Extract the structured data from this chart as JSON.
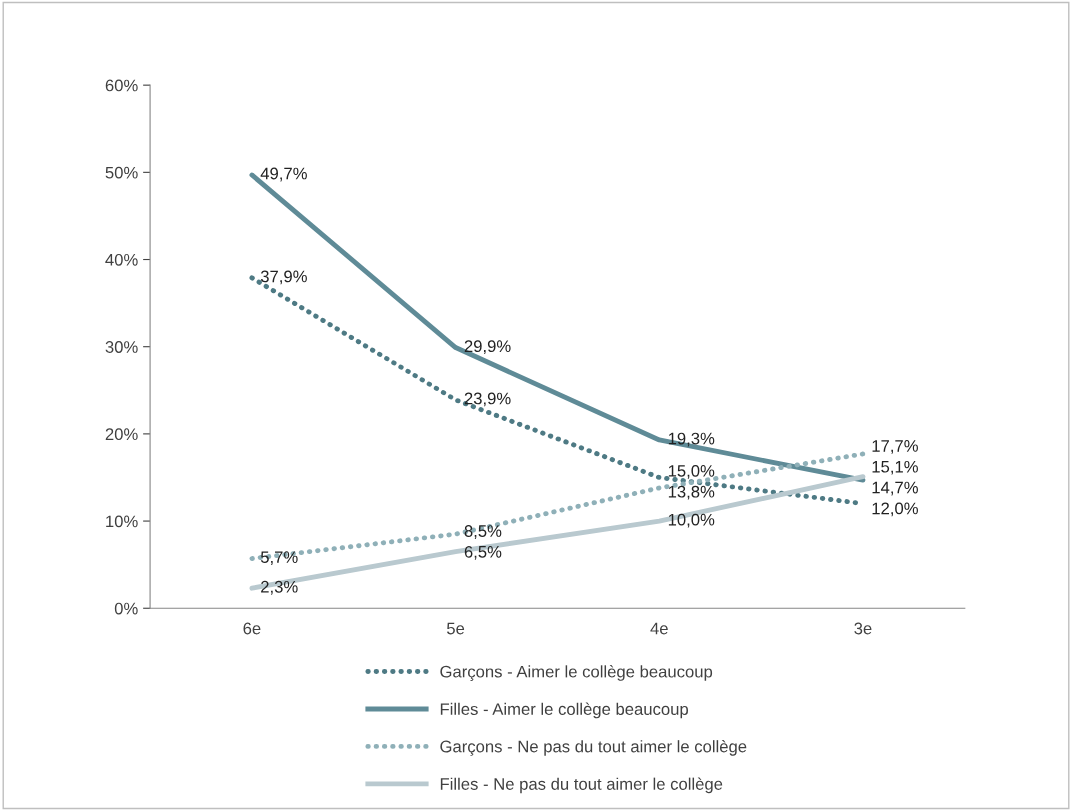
{
  "chart_data": {
    "type": "line",
    "categories": [
      "6e",
      "5e",
      "4e",
      "3e"
    ],
    "ylim": [
      0,
      60
    ],
    "yticks": [
      {
        "value": 0,
        "label": "0%"
      },
      {
        "value": 10,
        "label": "10%"
      },
      {
        "value": 20,
        "label": "20%"
      },
      {
        "value": 30,
        "label": "30%"
      },
      {
        "value": 40,
        "label": "40%"
      },
      {
        "value": 50,
        "label": "50%"
      },
      {
        "value": 60,
        "label": "60%"
      }
    ],
    "grid": false,
    "legend": "bottom",
    "marker": "none",
    "series": [
      {
        "name": "Garçons - Aimer le collège beaucoup",
        "color": "#4e7a84",
        "line_style": "dotted",
        "values": [
          37.9,
          23.9,
          15.0,
          12.0
        ],
        "value_labels": [
          "37,9%",
          "23,9%",
          "15,0%",
          "12,0%"
        ]
      },
      {
        "name": "Filles - Aimer le collège beaucoup",
        "color": "#5f8b97",
        "line_style": "solid",
        "values": [
          49.7,
          29.9,
          19.3,
          14.7
        ],
        "value_labels": [
          "49,7%",
          "29,9%",
          "19,3%",
          "14,7%"
        ]
      },
      {
        "name": "Garçons - Ne pas du tout aimer le collège",
        "color": "#8fb0b8",
        "line_style": "dotted",
        "values": [
          5.7,
          8.5,
          13.8,
          17.7
        ],
        "value_labels": [
          "5,7%",
          "8,5%",
          "13,8%",
          "17,7%"
        ]
      },
      {
        "name": "Filles - Ne pas du tout aimer le collège",
        "color": "#b9c9cf",
        "line_style": "solid",
        "values": [
          2.3,
          6.5,
          10.0,
          15.1
        ],
        "value_labels": [
          "2,3%",
          "6,5%",
          "10,0%",
          "15,1%"
        ]
      }
    ]
  }
}
